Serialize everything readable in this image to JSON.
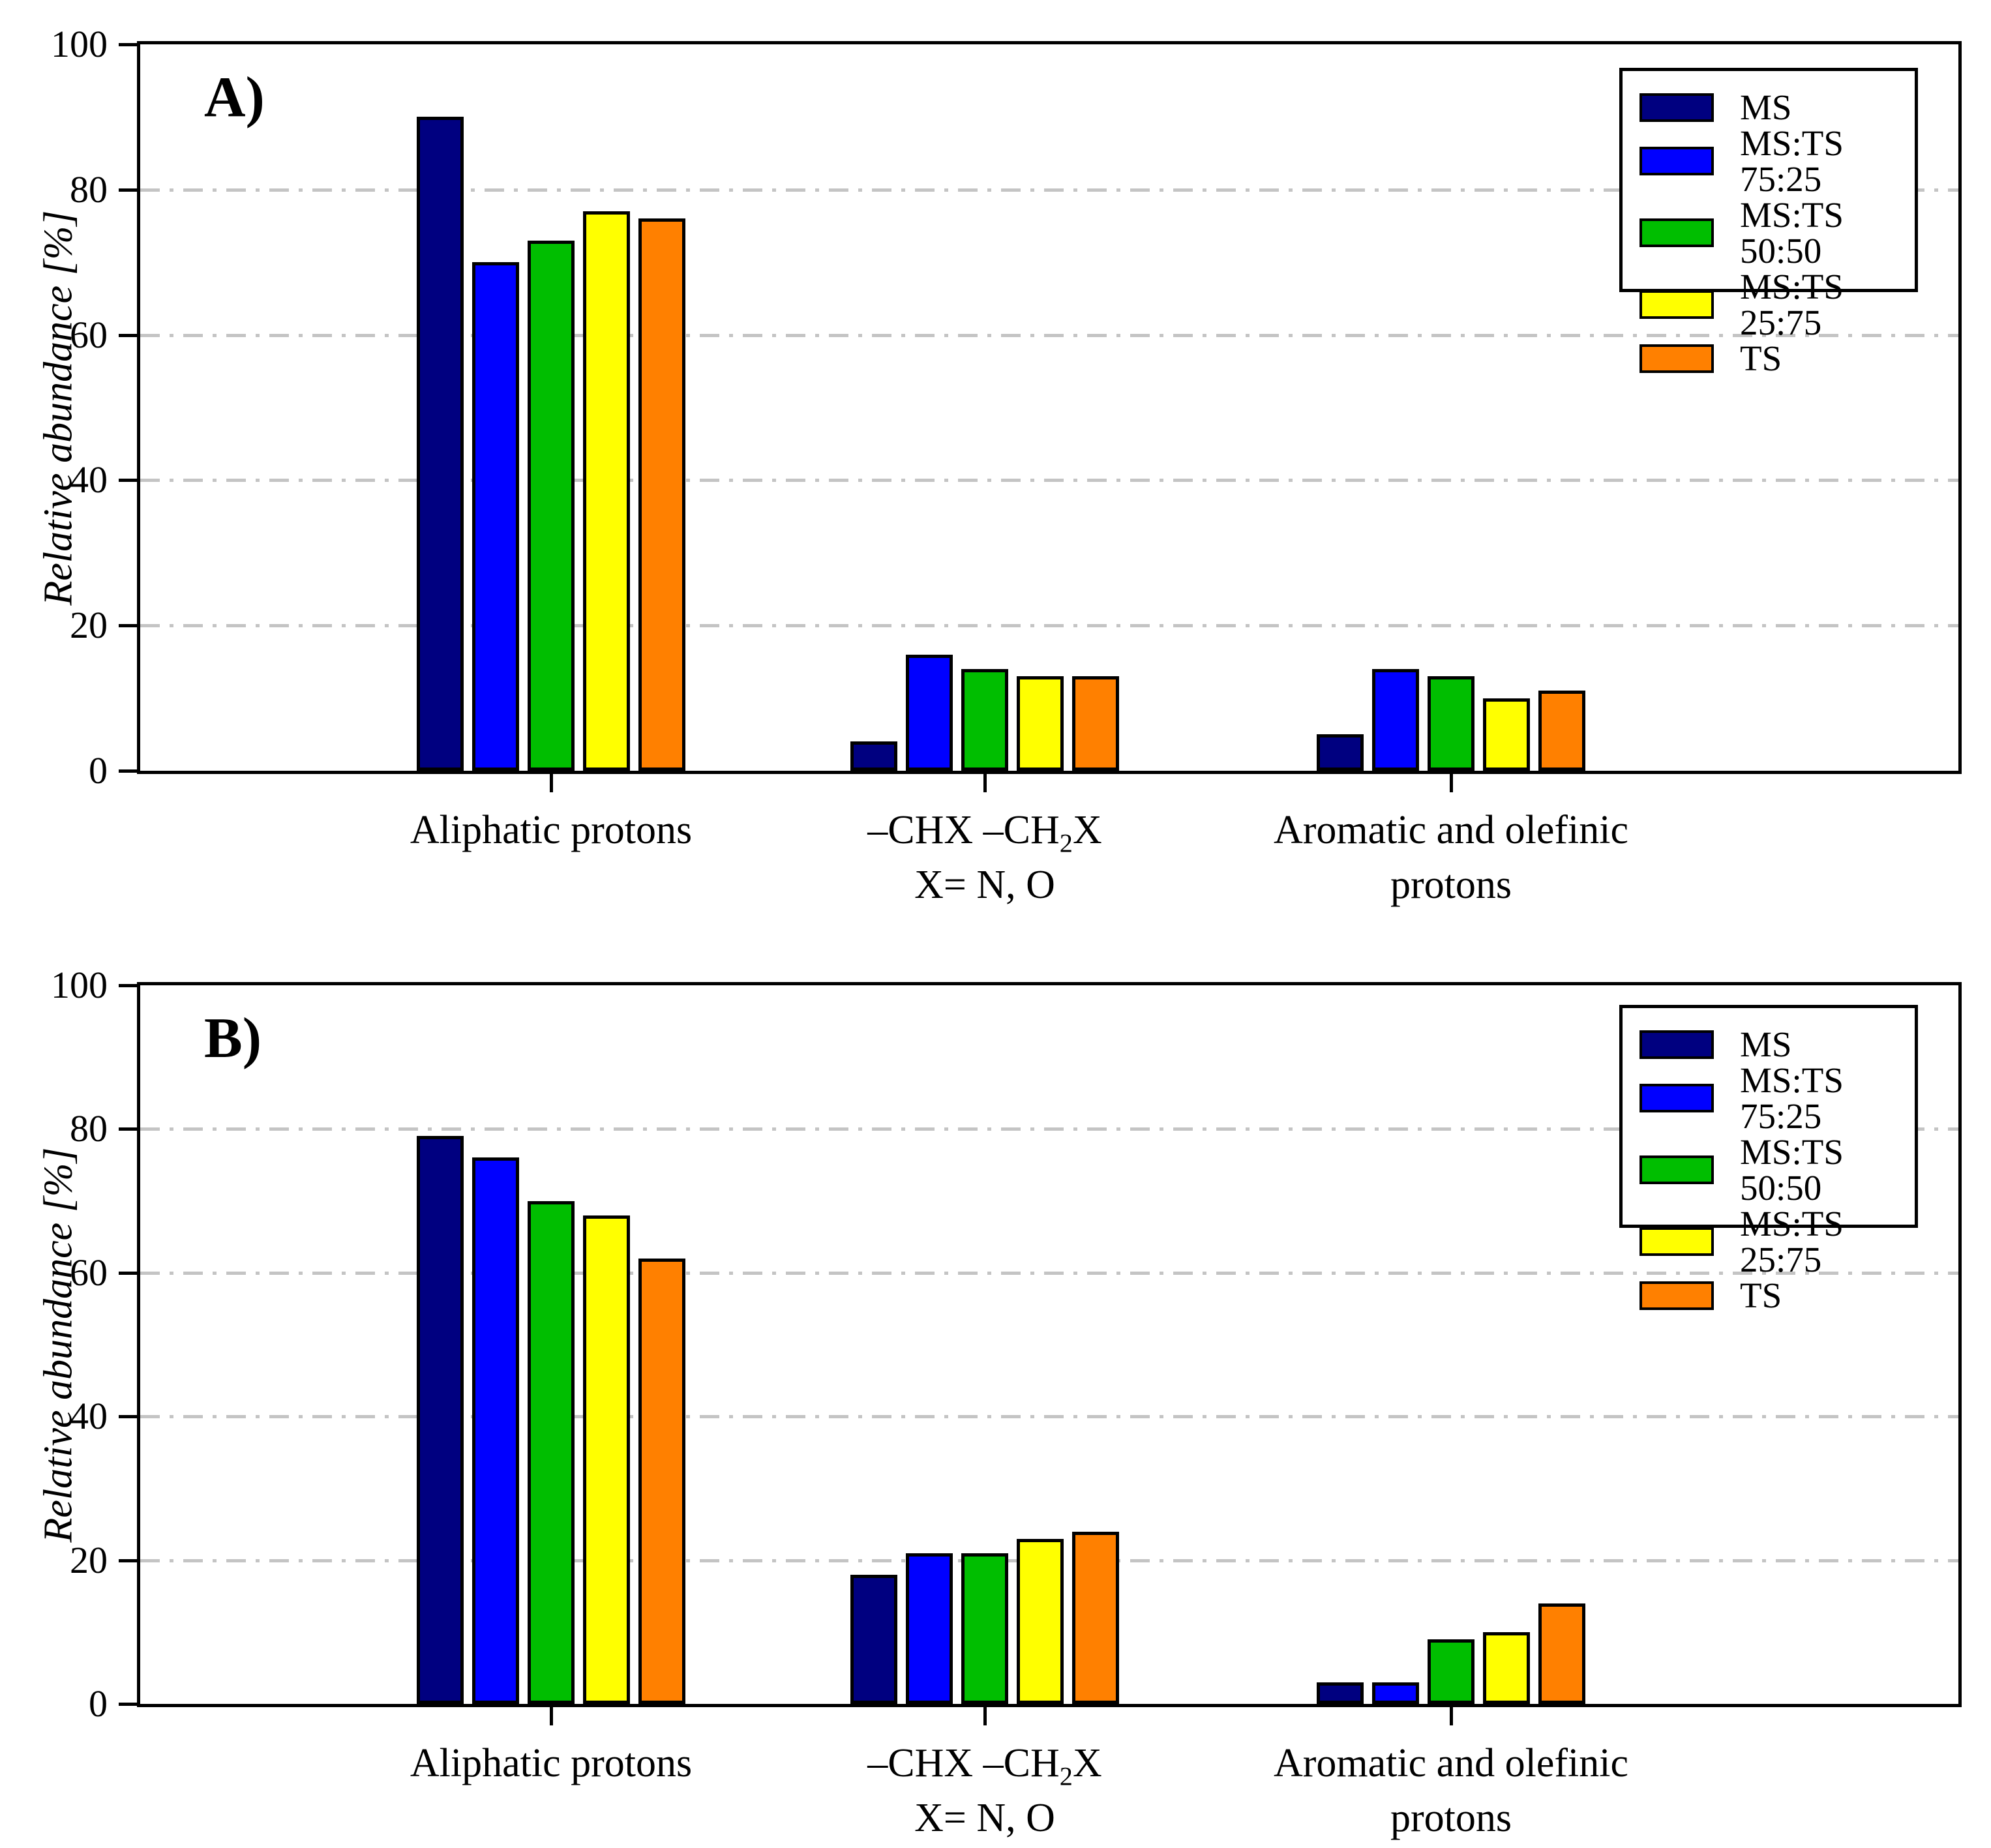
{
  "legend": {
    "entries": [
      {
        "label": "MS",
        "color": "#000080"
      },
      {
        "label": "MS:TS 75:25",
        "color": "#0000FF"
      },
      {
        "label": "MS:TS 50:50",
        "color": "#00BE00"
      },
      {
        "label": "MS:TS 25:75",
        "color": "#FFFF00"
      },
      {
        "label": "TS",
        "color": "#FF8000"
      }
    ]
  },
  "category_labels": [
    {
      "lines": [
        [
          {
            "t": "Aliphatic protons"
          }
        ]
      ]
    },
    {
      "lines": [
        [
          {
            "t": "–CHX –CH"
          },
          {
            "t": "2",
            "sub": true
          },
          {
            "t": "X"
          }
        ],
        [
          {
            "t": "X= N, O"
          }
        ]
      ]
    },
    {
      "lines": [
        [
          {
            "t": "Aromatic and olefinic"
          }
        ],
        [
          {
            "t": "protons"
          }
        ]
      ]
    }
  ],
  "axis_colors": {
    "axis": "#000000",
    "gridline": "#C4C4C4"
  },
  "chart_data": [
    {
      "type": "bar",
      "panel": "A)",
      "ylabel": "Relative abundance [%]",
      "ylim": [
        0,
        100
      ],
      "yticks": [
        0,
        20,
        40,
        60,
        80,
        100
      ],
      "grid": "horizontal dash-dot gridlines at 20, 40, 60, 80",
      "legend_position": "top-right",
      "categories": [
        "Aliphatic protons",
        "–CHX –CH2X\nX= N, O",
        "Aromatic and olefinic\nprotons"
      ],
      "series": [
        {
          "name": "MS",
          "color": "#000080",
          "values": [
            90,
            4,
            5
          ]
        },
        {
          "name": "MS:TS 75:25",
          "color": "#0000FF",
          "values": [
            70,
            16,
            14
          ]
        },
        {
          "name": "MS:TS 50:50",
          "color": "#00BE00",
          "values": [
            73,
            14,
            13
          ]
        },
        {
          "name": "MS:TS 25:75",
          "color": "#FFFF00",
          "values": [
            77,
            13,
            10
          ]
        },
        {
          "name": "TS",
          "color": "#FF8000",
          "values": [
            76,
            13,
            11
          ]
        }
      ]
    },
    {
      "type": "bar",
      "panel": "B)",
      "ylabel": "Relative abundance [%]",
      "ylim": [
        0,
        100
      ],
      "yticks": [
        0,
        20,
        40,
        60,
        80,
        100
      ],
      "grid": "horizontal dash-dot gridlines at 20, 40, 60, 80",
      "legend_position": "top-right",
      "categories": [
        "Aliphatic protons",
        "–CHX –CH2X\nX= N, O",
        "Aromatic and olefinic\nprotons"
      ],
      "series": [
        {
          "name": "MS",
          "color": "#000080",
          "values": [
            79,
            18,
            3
          ]
        },
        {
          "name": "MS:TS 75:25",
          "color": "#0000FF",
          "values": [
            76,
            21,
            3
          ]
        },
        {
          "name": "MS:TS 50:50",
          "color": "#00BE00",
          "values": [
            70,
            21,
            9
          ]
        },
        {
          "name": "MS:TS 25:75",
          "color": "#FFFF00",
          "values": [
            68,
            23,
            10
          ]
        },
        {
          "name": "TS",
          "color": "#FF8000",
          "values": [
            62,
            24,
            14
          ]
        }
      ]
    }
  ]
}
